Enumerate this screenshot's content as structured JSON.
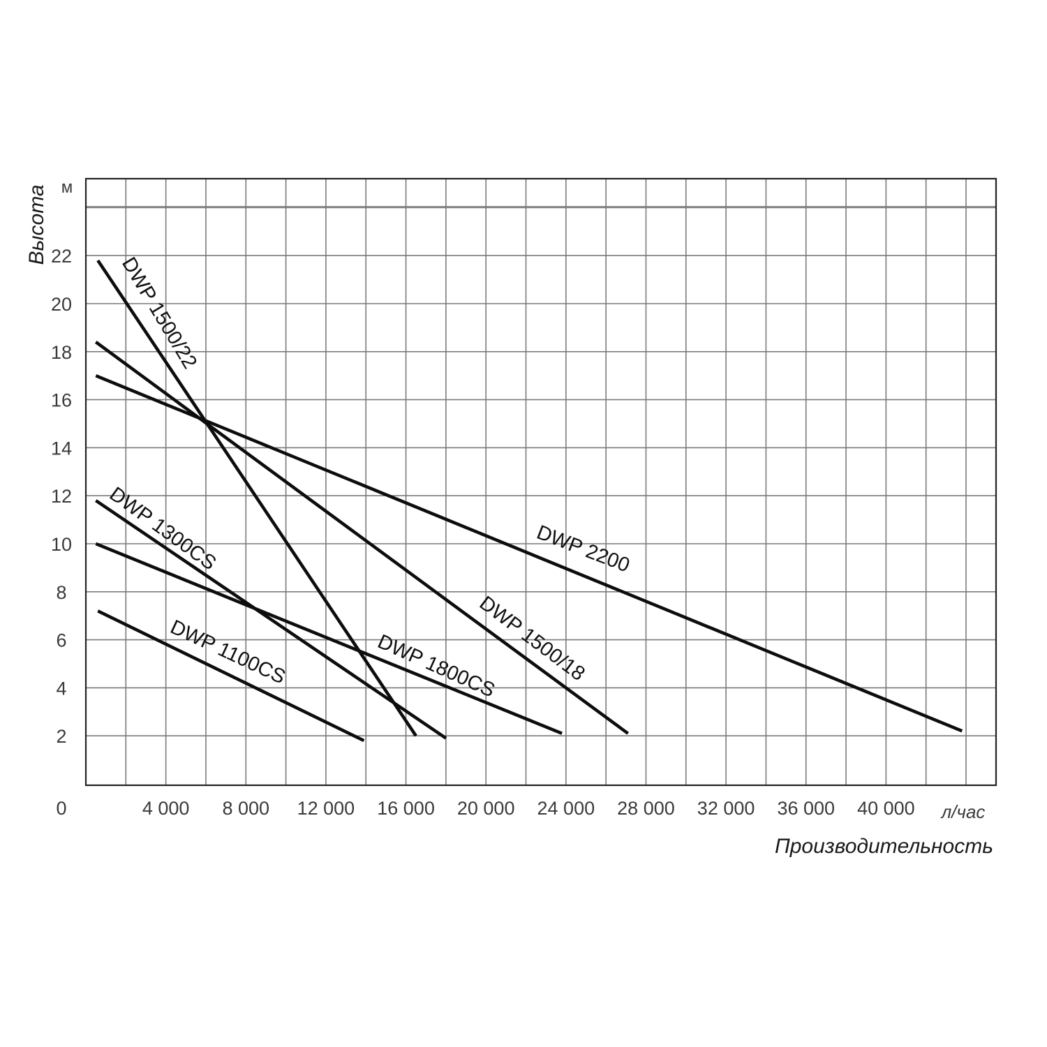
{
  "chart_data": {
    "type": "line",
    "title": "",
    "xlabel": "Производительность",
    "ylabel": "Высота",
    "x_unit": "л/час",
    "y_unit": "м",
    "origin_label": "0",
    "xlim": [
      0,
      45500
    ],
    "ylim": [
      0,
      25
    ],
    "x_ticks": [
      4000,
      8000,
      12000,
      16000,
      20000,
      24000,
      28000,
      32000,
      36000,
      40000
    ],
    "x_tick_labels": [
      "4 000",
      "8 000",
      "12 000",
      "16 000",
      "20 000",
      "24 000",
      "28 000",
      "32 000",
      "36 000",
      "40 000"
    ],
    "y_ticks": [
      2,
      4,
      6,
      8,
      10,
      12,
      14,
      16,
      18,
      20,
      22
    ],
    "y_tick_labels": [
      "2",
      "4",
      "6",
      "8",
      "10",
      "12",
      "14",
      "16",
      "18",
      "20",
      "22"
    ],
    "grid": true,
    "series": [
      {
        "name": "DWP 1500/22",
        "x": [
          600,
          16500
        ],
        "y": [
          21.8,
          2.0
        ]
      },
      {
        "name": "DWP 1500/18",
        "x": [
          500,
          27100
        ],
        "y": [
          18.4,
          2.1
        ]
      },
      {
        "name": "DWP 2200",
        "x": [
          500,
          43800
        ],
        "y": [
          17.0,
          2.2
        ]
      },
      {
        "name": "DWP 1300CS",
        "x": [
          500,
          18000
        ],
        "y": [
          11.8,
          1.9
        ]
      },
      {
        "name": "DWP 1800CS",
        "x": [
          500,
          23800
        ],
        "y": [
          10.0,
          2.1
        ]
      },
      {
        "name": "DWP 1100CS",
        "x": [
          600,
          13900
        ],
        "y": [
          7.2,
          1.8
        ]
      }
    ]
  }
}
